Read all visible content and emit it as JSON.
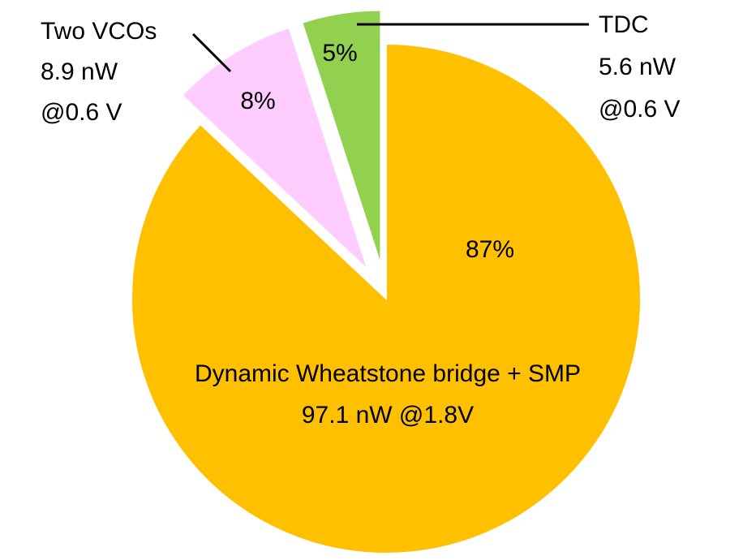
{
  "chart_data": {
    "type": "pie",
    "slices": [
      {
        "percent": 87,
        "percent_label": "87%",
        "label_lines": [
          "Dynamic Wheatstone bridge + SMP",
          "97.1 nW @1.8V"
        ],
        "color": "#FFC000",
        "exploded": false
      },
      {
        "percent": 8,
        "percent_label": "8%",
        "label_lines": [
          "Two VCOs",
          "8.9 nW",
          "@0.6 V"
        ],
        "color": "#FFCCFF",
        "exploded": true
      },
      {
        "percent": 5,
        "percent_label": "5%",
        "label_lines": [
          "TDC",
          "5.6 nW",
          "@0.6 V"
        ],
        "color": "#92D050",
        "exploded": true
      }
    ]
  }
}
